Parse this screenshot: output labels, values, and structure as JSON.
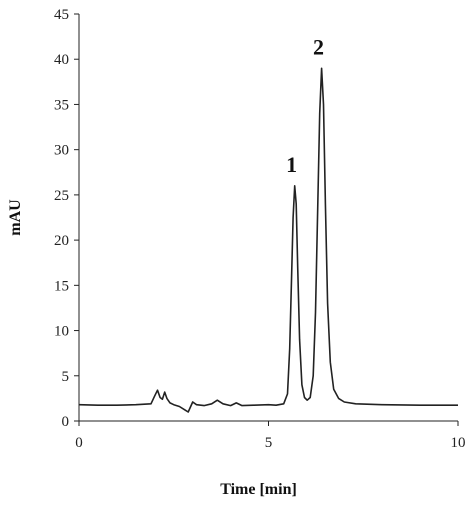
{
  "chart_data": {
    "type": "line",
    "title": "",
    "xlabel": "Time [min]",
    "ylabel": "mAU",
    "xlim": [
      0,
      10
    ],
    "ylim": [
      0,
      45
    ],
    "x_ticks": [
      0,
      5,
      10
    ],
    "y_ticks": [
      0,
      5,
      10,
      15,
      20,
      25,
      30,
      35,
      40,
      45
    ],
    "grid": false,
    "legend": "none",
    "line_color": "#222222",
    "series": [
      {
        "values": [
          [
            0.0,
            1.8
          ],
          [
            0.5,
            1.75
          ],
          [
            1.0,
            1.75
          ],
          [
            1.5,
            1.8
          ],
          [
            1.9,
            1.9
          ],
          [
            2.0,
            2.8
          ],
          [
            2.07,
            3.4
          ],
          [
            2.14,
            2.6
          ],
          [
            2.2,
            2.4
          ],
          [
            2.26,
            3.2
          ],
          [
            2.32,
            2.5
          ],
          [
            2.4,
            2.0
          ],
          [
            2.5,
            1.8
          ],
          [
            2.65,
            1.6
          ],
          [
            2.8,
            1.2
          ],
          [
            2.88,
            1.0
          ],
          [
            3.0,
            2.1
          ],
          [
            3.1,
            1.8
          ],
          [
            3.3,
            1.7
          ],
          [
            3.5,
            1.9
          ],
          [
            3.65,
            2.3
          ],
          [
            3.8,
            1.9
          ],
          [
            4.0,
            1.7
          ],
          [
            4.15,
            2.0
          ],
          [
            4.3,
            1.7
          ],
          [
            4.6,
            1.75
          ],
          [
            5.0,
            1.8
          ],
          [
            5.2,
            1.75
          ],
          [
            5.4,
            1.9
          ],
          [
            5.5,
            3.0
          ],
          [
            5.56,
            8.0
          ],
          [
            5.61,
            16.0
          ],
          [
            5.65,
            22.5
          ],
          [
            5.69,
            26.0
          ],
          [
            5.73,
            24.0
          ],
          [
            5.77,
            17.0
          ],
          [
            5.82,
            9.0
          ],
          [
            5.88,
            4.0
          ],
          [
            5.95,
            2.6
          ],
          [
            6.02,
            2.3
          ],
          [
            6.1,
            2.6
          ],
          [
            6.18,
            5.0
          ],
          [
            6.24,
            12.0
          ],
          [
            6.3,
            24.0
          ],
          [
            6.35,
            34.0
          ],
          [
            6.4,
            39.0
          ],
          [
            6.45,
            35.0
          ],
          [
            6.5,
            24.0
          ],
          [
            6.56,
            13.0
          ],
          [
            6.63,
            6.5
          ],
          [
            6.72,
            3.5
          ],
          [
            6.85,
            2.5
          ],
          [
            7.0,
            2.1
          ],
          [
            7.3,
            1.9
          ],
          [
            8.0,
            1.8
          ],
          [
            9.0,
            1.75
          ],
          [
            10.0,
            1.75
          ]
        ]
      }
    ],
    "annotations": [
      {
        "text": "1",
        "x": 5.69,
        "y": 26.0
      },
      {
        "text": "2",
        "x": 6.4,
        "y": 39.0
      }
    ]
  }
}
